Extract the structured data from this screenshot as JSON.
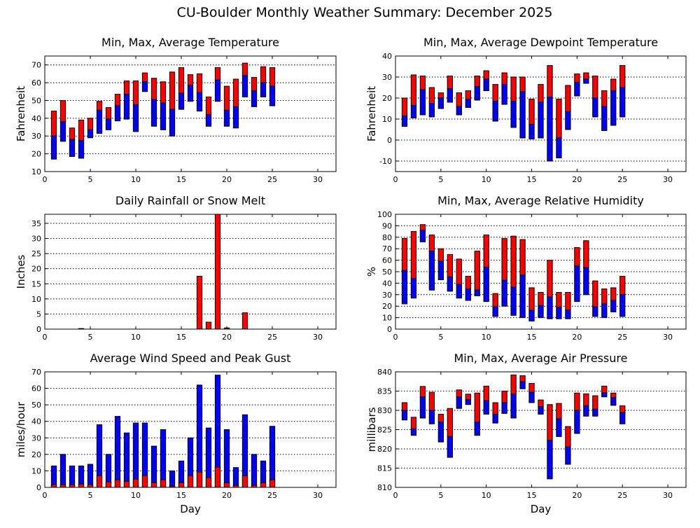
{
  "title": "CU-Boulder Monthly Weather Summary: December 2025",
  "colors": {
    "upper": "#ff0000",
    "lower": "#0000ff",
    "grid": "#000000"
  },
  "chart_data": [
    {
      "type": "bar",
      "subtype": "floating-range",
      "title": "Min, Max, Average Temperature",
      "xlabel": "",
      "ylabel": "Fahrenheit",
      "xlim": [
        0,
        32
      ],
      "ylim": [
        10,
        75
      ],
      "xticks": [
        0,
        5,
        10,
        15,
        20,
        25,
        30
      ],
      "yticks": [
        10,
        20,
        30,
        40,
        50,
        60,
        70
      ],
      "grid": true,
      "x": [
        1,
        2,
        3,
        4,
        5,
        6,
        7,
        8,
        9,
        10,
        11,
        12,
        13,
        14,
        15,
        16,
        17,
        18,
        19,
        20,
        21,
        22,
        23,
        24,
        25
      ],
      "min": [
        17,
        27,
        18.5,
        17.5,
        29,
        31.5,
        33.5,
        38.5,
        39.5,
        32.5,
        55,
        35.5,
        33.5,
        30,
        45,
        49.5,
        44,
        35.5,
        49.5,
        35.5,
        34.5,
        52,
        46.5,
        52,
        47
      ],
      "avg": [
        30,
        38,
        28,
        27.5,
        33.5,
        44.5,
        39.5,
        47,
        53.5,
        47.5,
        60.5,
        50.5,
        48.5,
        45,
        54,
        58.5,
        54.5,
        42,
        61.5,
        44.5,
        46.5,
        64,
        55.5,
        60,
        58
      ],
      "max": [
        44,
        50,
        34.5,
        39,
        40,
        49.5,
        46,
        53.5,
        61,
        61,
        65.5,
        62.5,
        60.5,
        66,
        68.5,
        64.5,
        65,
        52,
        68.5,
        58,
        62,
        71,
        63,
        69,
        68.5
      ]
    },
    {
      "type": "bar",
      "subtype": "floating-range",
      "title": "Min, Max, Average Dewpoint Temperature",
      "xlabel": "",
      "ylabel": "Fahrenheit",
      "xlim": [
        0,
        32
      ],
      "ylim": [
        -15,
        40
      ],
      "xticks": [
        0,
        5,
        10,
        15,
        20,
        25,
        30
      ],
      "yticks": [
        -10,
        0,
        10,
        20,
        30,
        40
      ],
      "grid": true,
      "x": [
        1,
        2,
        3,
        4,
        5,
        6,
        7,
        8,
        9,
        10,
        11,
        12,
        13,
        14,
        15,
        16,
        17,
        18,
        19,
        20,
        21,
        22,
        23,
        24,
        25
      ],
      "min": [
        6.5,
        10.5,
        12,
        11,
        15,
        18,
        12,
        15.5,
        19,
        23.5,
        9,
        17,
        6,
        1,
        0.5,
        1,
        -10,
        -8.5,
        5,
        21,
        27,
        11,
        4.5,
        7,
        11
      ],
      "avg": [
        11.5,
        16.5,
        24,
        17.5,
        20,
        24.5,
        16,
        19.5,
        25.5,
        29,
        18.5,
        26.5,
        18.5,
        23,
        7.5,
        18,
        20.5,
        1,
        13.5,
        27.5,
        29,
        20,
        16,
        23.5,
        25
      ],
      "max": [
        20,
        31,
        30.5,
        25,
        22.5,
        30.5,
        22.5,
        23.5,
        30.5,
        33,
        26.5,
        32,
        30,
        30,
        19.5,
        26.5,
        35.5,
        19.5,
        26,
        31.5,
        32,
        30.5,
        23.5,
        29,
        35.5
      ]
    },
    {
      "type": "bar",
      "title": "Daily Rainfall or Snow Melt",
      "xlabel": "",
      "ylabel": "Inches",
      "xlim": [
        0,
        32
      ],
      "ylim": [
        0,
        38
      ],
      "xticks": [
        0,
        5,
        10,
        15,
        20,
        25,
        30
      ],
      "yticks": [
        0,
        5,
        10,
        15,
        20,
        25,
        30,
        35
      ],
      "grid": true,
      "x": [
        4,
        17,
        18,
        19,
        20,
        22
      ],
      "values": [
        0.2,
        17.5,
        2.3,
        38,
        0.4,
        5.4
      ]
    },
    {
      "type": "bar",
      "subtype": "floating-range",
      "title": "Min, Max, Average Relative Humidity",
      "xlabel": "",
      "ylabel": "%",
      "xlim": [
        0,
        32
      ],
      "ylim": [
        0,
        100
      ],
      "xticks": [
        0,
        5,
        10,
        15,
        20,
        25,
        30
      ],
      "yticks": [
        0,
        10,
        20,
        30,
        40,
        50,
        60,
        70,
        80,
        90,
        100
      ],
      "grid": true,
      "x": [
        1,
        2,
        3,
        4,
        5,
        6,
        7,
        8,
        9,
        10,
        11,
        12,
        13,
        14,
        15,
        16,
        17,
        18,
        19,
        20,
        21,
        22,
        23,
        24,
        25
      ],
      "min": [
        22,
        27,
        76,
        34,
        43,
        33,
        27,
        25,
        29,
        24,
        11,
        20,
        12,
        10,
        7,
        10,
        9,
        9,
        9,
        24,
        30,
        11,
        10,
        15,
        11
      ],
      "avg": [
        51,
        44,
        86,
        68,
        59,
        45.5,
        39,
        35,
        34,
        54,
        19.5,
        42.5,
        36.5,
        47,
        16.5,
        20.5,
        28,
        19,
        16.5,
        55,
        53.5,
        19.5,
        22,
        25,
        30
      ],
      "max": [
        79,
        85,
        91,
        82,
        70,
        65,
        61,
        46,
        68,
        82,
        31,
        79,
        81,
        78,
        36,
        32,
        60,
        32,
        32,
        71,
        77,
        42,
        35,
        36,
        46
      ]
    },
    {
      "type": "bar",
      "subtype": "overlaid",
      "title": "Average Wind Speed and Peak Gust",
      "xlabel": "Day",
      "ylabel": "miles/hour",
      "xlim": [
        0,
        32
      ],
      "ylim": [
        0,
        70
      ],
      "xticks": [
        0,
        5,
        10,
        15,
        20,
        25,
        30
      ],
      "yticks": [
        0,
        10,
        20,
        30,
        40,
        50,
        60,
        70
      ],
      "grid": true,
      "x": [
        1,
        2,
        3,
        4,
        5,
        6,
        7,
        8,
        9,
        10,
        11,
        12,
        13,
        14,
        15,
        16,
        17,
        18,
        19,
        20,
        21,
        22,
        23,
        24,
        25
      ],
      "avg": [
        1.5,
        1.5,
        1.5,
        2,
        1.5,
        7,
        3.3,
        4.5,
        3.7,
        5,
        7,
        2.8,
        4.5,
        0.8,
        2.8,
        7,
        9.3,
        5.8,
        12.2,
        2.8,
        1.2,
        7,
        1.2,
        2.8,
        4.5
      ],
      "gust": [
        13,
        20,
        13,
        13,
        14,
        38,
        20,
        43,
        33,
        39,
        39,
        25,
        35,
        10,
        16,
        30,
        62,
        36,
        68,
        35,
        12,
        44,
        20,
        16,
        37
      ]
    },
    {
      "type": "bar",
      "subtype": "floating-range",
      "title": "Min, Max, Average Air Pressure",
      "xlabel": "Day",
      "ylabel": "millibars",
      "xlim": [
        0,
        32
      ],
      "ylim": [
        810,
        840
      ],
      "xticks": [
        0,
        5,
        10,
        15,
        20,
        25,
        30
      ],
      "yticks": [
        810,
        815,
        820,
        825,
        830,
        835,
        840
      ],
      "grid": true,
      "x": [
        1,
        2,
        3,
        4,
        5,
        6,
        7,
        8,
        9,
        10,
        11,
        12,
        13,
        14,
        15,
        16,
        17,
        18,
        19,
        20,
        21,
        22,
        23,
        24,
        25
      ],
      "min": [
        827.5,
        823.5,
        828,
        826.5,
        821.8,
        817.8,
        830.5,
        831.5,
        823.5,
        829,
        826.7,
        829.2,
        828,
        835.6,
        832,
        829,
        812.2,
        823.2,
        816,
        824,
        828.5,
        828.5,
        833.5,
        831.3,
        826.5
      ],
      "avg": [
        830,
        825.2,
        833.5,
        830,
        827,
        823.2,
        833.5,
        832.8,
        827,
        832.5,
        829,
        832,
        834.2,
        837.4,
        834.7,
        831,
        822.2,
        827.8,
        820.5,
        830,
        831.2,
        830.3,
        834.5,
        833.3,
        829.4
      ],
      "max": [
        832,
        828.2,
        836.2,
        834.7,
        829,
        830.5,
        835.3,
        834.2,
        834.5,
        836.3,
        832,
        835,
        839.2,
        839,
        837,
        832.7,
        831.5,
        831.8,
        825.8,
        834.5,
        834.3,
        833.8,
        836.3,
        834.5,
        831.2
      ]
    }
  ]
}
